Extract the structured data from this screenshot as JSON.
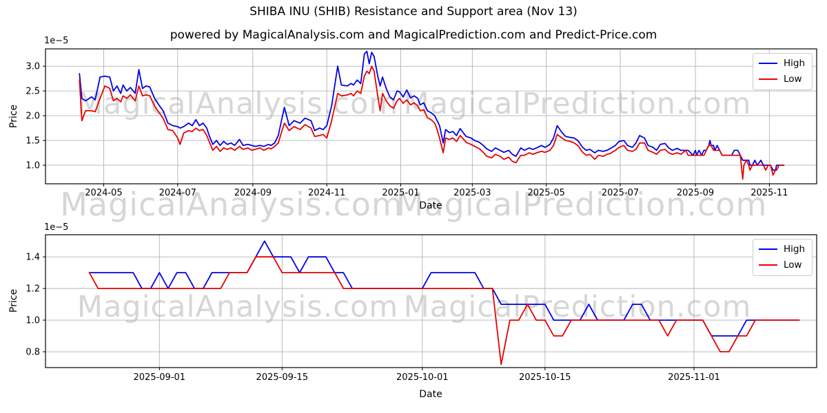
{
  "header": {
    "title": "SHIBA INU (SHIB) Resistance and Support area (Nov 13)",
    "subtitle": "powered by MagicalAnalysis.com and MagicalPrediction.com and Predict-Price.com"
  },
  "watermarks": {
    "color": "#d6d6d6",
    "top_chart": [
      "MagicalAnalysis.com",
      "MagicalPrediction.com"
    ],
    "middle": [
      "MagicalAnalysis.com",
      "MagicalPrediction.com"
    ],
    "bottom_chart": [
      "MagicalAnalysis.com",
      "MagicalPrediction.com"
    ]
  },
  "chart_data": [
    {
      "type": "line",
      "name": "full-history",
      "title": "SHIBA INU (SHIB) Resistance and Support area (Nov 13)",
      "subtitle": "powered by MagicalAnalysis.com and MagicalPrediction.com and Predict-Price.com",
      "xlabel": "Date",
      "ylabel": "Price",
      "y_offset": "1e−5",
      "unit": "1e-5",
      "grid": true,
      "legend_position": "upper right",
      "xlim": [
        "2024-03-14",
        "2025-12-10"
      ],
      "ylim": [
        0.625,
        3.35
      ],
      "y_ticks": [
        1.0,
        1.5,
        2.0,
        2.5,
        3.0
      ],
      "x_ticks": [
        {
          "label": "2024-05",
          "date": "2024-05-01"
        },
        {
          "label": "2024-07",
          "date": "2024-07-01"
        },
        {
          "label": "2024-09",
          "date": "2024-09-01"
        },
        {
          "label": "2024-11",
          "date": "2024-11-01"
        },
        {
          "label": "2025-01",
          "date": "2025-01-01"
        },
        {
          "label": "2025-03",
          "date": "2025-03-01"
        },
        {
          "label": "2025-05",
          "date": "2025-05-01"
        },
        {
          "label": "2025-07",
          "date": "2025-07-01"
        },
        {
          "label": "2025-09",
          "date": "2025-09-01"
        },
        {
          "label": "2025-11",
          "date": "2025-11-01"
        }
      ],
      "x": [
        "2024-04-11",
        "2024-04-13",
        "2024-04-16",
        "2024-04-21",
        "2024-04-24",
        "2024-04-28",
        "2024-05-02",
        "2024-05-06",
        "2024-05-09",
        "2024-05-12",
        "2024-05-15",
        "2024-05-17",
        "2024-05-20",
        "2024-05-23",
        "2024-05-27",
        "2024-05-30",
        "2024-06-02",
        "2024-06-05",
        "2024-06-08",
        "2024-06-12",
        "2024-06-16",
        "2024-06-19",
        "2024-06-23",
        "2024-06-27",
        "2024-07-01",
        "2024-07-03",
        "2024-07-06",
        "2024-07-10",
        "2024-07-13",
        "2024-07-16",
        "2024-07-19",
        "2024-07-22",
        "2024-07-25",
        "2024-07-27",
        "2024-07-30",
        "2024-08-02",
        "2024-08-05",
        "2024-08-08",
        "2024-08-11",
        "2024-08-14",
        "2024-08-17",
        "2024-08-21",
        "2024-08-24",
        "2024-08-28",
        "2024-08-31",
        "2024-09-03",
        "2024-09-07",
        "2024-09-10",
        "2024-09-14",
        "2024-09-16",
        "2024-09-19",
        "2024-09-22",
        "2024-09-27",
        "2024-10-01",
        "2024-10-05",
        "2024-10-10",
        "2024-10-14",
        "2024-10-19",
        "2024-10-22",
        "2024-10-26",
        "2024-10-29",
        "2024-11-01",
        "2024-11-05",
        "2024-11-10",
        "2024-11-13",
        "2024-11-18",
        "2024-11-21",
        "2024-11-23",
        "2024-11-26",
        "2024-11-29",
        "2024-12-02",
        "2024-12-04",
        "2024-12-06",
        "2024-12-08",
        "2024-12-10",
        "2024-12-13",
        "2024-12-15",
        "2024-12-17",
        "2024-12-20",
        "2024-12-23",
        "2024-12-26",
        "2024-12-29",
        "2024-12-31",
        "2025-01-03",
        "2025-01-06",
        "2025-01-09",
        "2025-01-12",
        "2025-01-15",
        "2025-01-17",
        "2025-01-20",
        "2025-01-23",
        "2025-01-26",
        "2025-01-29",
        "2025-01-31",
        "2025-02-02",
        "2025-02-05",
        "2025-02-07",
        "2025-02-10",
        "2025-02-13",
        "2025-02-16",
        "2025-02-19",
        "2025-02-22",
        "2025-02-24",
        "2025-02-28",
        "2025-03-03",
        "2025-03-07",
        "2025-03-10",
        "2025-03-13",
        "2025-03-17",
        "2025-03-20",
        "2025-03-24",
        "2025-03-27",
        "2025-03-31",
        "2025-04-03",
        "2025-04-06",
        "2025-04-10",
        "2025-04-13",
        "2025-04-17",
        "2025-04-20",
        "2025-04-23",
        "2025-04-27",
        "2025-04-30",
        "2025-05-04",
        "2025-05-07",
        "2025-05-10",
        "2025-05-14",
        "2025-05-17",
        "2025-05-21",
        "2025-05-24",
        "2025-05-27",
        "2025-05-31",
        "2025-06-03",
        "2025-06-06",
        "2025-06-10",
        "2025-06-13",
        "2025-06-17",
        "2025-06-20",
        "2025-06-23",
        "2025-06-27",
        "2025-06-30",
        "2025-07-04",
        "2025-07-07",
        "2025-07-11",
        "2025-07-14",
        "2025-07-17",
        "2025-07-21",
        "2025-07-24",
        "2025-07-28",
        "2025-07-31",
        "2025-08-03",
        "2025-08-07",
        "2025-08-10",
        "2025-08-13",
        "2025-08-17",
        "2025-08-20",
        "2025-08-24",
        "2025-08-26",
        "2025-08-30",
        "2025-09-01",
        "2025-09-02",
        "2025-09-04",
        "2025-09-06",
        "2025-09-08",
        "2025-09-10",
        "2025-09-12",
        "2025-09-13",
        "2025-09-14",
        "2025-09-16",
        "2025-09-17",
        "2025-09-19",
        "2025-09-21",
        "2025-09-23",
        "2025-10-01",
        "2025-10-03",
        "2025-10-06",
        "2025-10-08",
        "2025-10-10",
        "2025-10-11",
        "2025-10-13",
        "2025-10-15",
        "2025-10-16",
        "2025-10-18",
        "2025-10-20",
        "2025-10-22",
        "2025-10-25",
        "2025-10-27",
        "2025-10-29",
        "2025-10-31",
        "2025-11-02",
        "2025-11-04",
        "2025-11-06",
        "2025-11-07",
        "2025-11-09",
        "2025-11-13"
      ],
      "series": [
        {
          "name": "High",
          "color": "#0000e6",
          "values": [
            2.85,
            2.35,
            2.3,
            2.38,
            2.32,
            2.78,
            2.8,
            2.78,
            2.5,
            2.6,
            2.45,
            2.62,
            2.5,
            2.57,
            2.45,
            2.93,
            2.55,
            2.6,
            2.58,
            2.35,
            2.2,
            2.1,
            1.85,
            1.8,
            1.78,
            1.75,
            1.78,
            1.85,
            1.8,
            1.92,
            1.8,
            1.85,
            1.75,
            1.6,
            1.42,
            1.5,
            1.4,
            1.48,
            1.42,
            1.45,
            1.4,
            1.52,
            1.4,
            1.42,
            1.4,
            1.38,
            1.4,
            1.38,
            1.42,
            1.4,
            1.45,
            1.6,
            2.17,
            1.8,
            1.9,
            1.85,
            1.95,
            1.9,
            1.7,
            1.75,
            1.72,
            1.8,
            2.2,
            3.0,
            2.62,
            2.6,
            2.65,
            2.62,
            2.72,
            2.65,
            3.25,
            3.3,
            3.05,
            3.28,
            3.2,
            2.8,
            2.6,
            2.78,
            2.55,
            2.38,
            2.32,
            2.5,
            2.48,
            2.38,
            2.52,
            2.36,
            2.4,
            2.35,
            2.22,
            2.26,
            2.1,
            2.06,
            2.0,
            1.9,
            1.8,
            1.45,
            1.72,
            1.66,
            1.68,
            1.6,
            1.74,
            1.64,
            1.58,
            1.55,
            1.5,
            1.46,
            1.4,
            1.33,
            1.28,
            1.35,
            1.3,
            1.26,
            1.3,
            1.22,
            1.18,
            1.35,
            1.3,
            1.35,
            1.32,
            1.35,
            1.4,
            1.36,
            1.42,
            1.55,
            1.8,
            1.66,
            1.58,
            1.56,
            1.55,
            1.5,
            1.36,
            1.3,
            1.32,
            1.25,
            1.3,
            1.28,
            1.3,
            1.34,
            1.4,
            1.48,
            1.5,
            1.4,
            1.36,
            1.45,
            1.6,
            1.55,
            1.4,
            1.36,
            1.3,
            1.42,
            1.44,
            1.35,
            1.3,
            1.34,
            1.3,
            1.3,
            1.3,
            1.2,
            1.3,
            1.2,
            1.3,
            1.2,
            1.3,
            1.3,
            1.4,
            1.5,
            1.4,
            1.4,
            1.3,
            1.4,
            1.3,
            1.2,
            1.2,
            1.3,
            1.3,
            1.2,
            1.1,
            1.1,
            1.1,
            1.1,
            1.0,
            1.0,
            1.1,
            1.0,
            1.1,
            1.0,
            1.0,
            1.0,
            1.0,
            0.9,
            0.9,
            1.0,
            1.0,
            1.0
          ]
        },
        {
          "name": "Low",
          "color": "#e60000",
          "values": [
            2.72,
            1.9,
            2.1,
            2.1,
            2.08,
            2.35,
            2.6,
            2.55,
            2.3,
            2.35,
            2.28,
            2.4,
            2.35,
            2.42,
            2.3,
            2.6,
            2.4,
            2.42,
            2.4,
            2.2,
            2.05,
            1.95,
            1.72,
            1.7,
            1.55,
            1.42,
            1.65,
            1.7,
            1.68,
            1.75,
            1.7,
            1.72,
            1.6,
            1.48,
            1.3,
            1.38,
            1.28,
            1.35,
            1.32,
            1.35,
            1.3,
            1.38,
            1.32,
            1.35,
            1.3,
            1.32,
            1.35,
            1.3,
            1.35,
            1.33,
            1.38,
            1.45,
            1.85,
            1.7,
            1.78,
            1.72,
            1.82,
            1.75,
            1.58,
            1.6,
            1.62,
            1.55,
            1.9,
            2.45,
            2.4,
            2.42,
            2.45,
            2.4,
            2.5,
            2.45,
            2.8,
            2.9,
            2.85,
            3.0,
            2.9,
            2.4,
            2.1,
            2.45,
            2.3,
            2.2,
            2.15,
            2.3,
            2.35,
            2.25,
            2.32,
            2.22,
            2.26,
            2.2,
            2.1,
            2.12,
            1.96,
            1.92,
            1.85,
            1.72,
            1.55,
            1.25,
            1.55,
            1.52,
            1.55,
            1.48,
            1.6,
            1.52,
            1.46,
            1.42,
            1.38,
            1.33,
            1.26,
            1.18,
            1.15,
            1.22,
            1.18,
            1.12,
            1.16,
            1.08,
            1.05,
            1.2,
            1.2,
            1.25,
            1.22,
            1.25,
            1.28,
            1.26,
            1.3,
            1.4,
            1.62,
            1.55,
            1.5,
            1.48,
            1.45,
            1.4,
            1.26,
            1.2,
            1.22,
            1.12,
            1.2,
            1.18,
            1.22,
            1.24,
            1.3,
            1.36,
            1.4,
            1.3,
            1.28,
            1.32,
            1.45,
            1.45,
            1.3,
            1.26,
            1.22,
            1.3,
            1.32,
            1.25,
            1.22,
            1.25,
            1.22,
            1.3,
            1.2,
            1.2,
            1.2,
            1.2,
            1.2,
            1.2,
            1.2,
            1.3,
            1.4,
            1.4,
            1.4,
            1.3,
            1.3,
            1.3,
            1.3,
            1.2,
            1.2,
            1.2,
            1.2,
            1.2,
            0.72,
            1.0,
            1.1,
            1.0,
            0.9,
            1.0,
            1.0,
            1.0,
            1.0,
            1.0,
            0.9,
            1.0,
            1.0,
            0.8,
            0.9,
            0.9,
            1.0,
            1.0
          ]
        }
      ]
    },
    {
      "type": "line",
      "name": "recent-zoom",
      "title": "",
      "xlabel": "Date",
      "ylabel": "Price",
      "y_offset": "1e−5",
      "unit": "1e-5",
      "grid": true,
      "legend_position": "upper right",
      "xlim": [
        "2025-08-19",
        "2025-11-15"
      ],
      "ylim": [
        0.7,
        1.54
      ],
      "y_ticks": [
        0.8,
        1.0,
        1.2,
        1.4
      ],
      "x_ticks": [
        {
          "label": "2025-09-01",
          "date": "2025-09-01"
        },
        {
          "label": "2025-09-15",
          "date": "2025-09-15"
        },
        {
          "label": "2025-10-01",
          "date": "2025-10-01"
        },
        {
          "label": "2025-10-15",
          "date": "2025-10-15"
        },
        {
          "label": "2025-11-01",
          "date": "2025-11-01"
        }
      ],
      "x": [
        "2025-08-24",
        "2025-08-25",
        "2025-08-26",
        "2025-08-27",
        "2025-08-28",
        "2025-08-29",
        "2025-08-30",
        "2025-08-31",
        "2025-09-01",
        "2025-09-02",
        "2025-09-03",
        "2025-09-04",
        "2025-09-05",
        "2025-09-06",
        "2025-09-07",
        "2025-09-08",
        "2025-09-09",
        "2025-09-10",
        "2025-09-11",
        "2025-09-12",
        "2025-09-13",
        "2025-09-14",
        "2025-09-15",
        "2025-09-16",
        "2025-09-17",
        "2025-09-18",
        "2025-09-19",
        "2025-09-20",
        "2025-09-21",
        "2025-09-22",
        "2025-09-23",
        "2025-09-24",
        "2025-09-25",
        "2025-09-26",
        "2025-09-27",
        "2025-09-28",
        "2025-09-29",
        "2025-09-30",
        "2025-10-01",
        "2025-10-02",
        "2025-10-03",
        "2025-10-04",
        "2025-10-05",
        "2025-10-06",
        "2025-10-07",
        "2025-10-08",
        "2025-10-09",
        "2025-10-10",
        "2025-10-11",
        "2025-10-12",
        "2025-10-13",
        "2025-10-14",
        "2025-10-15",
        "2025-10-16",
        "2025-10-17",
        "2025-10-18",
        "2025-10-19",
        "2025-10-20",
        "2025-10-21",
        "2025-10-22",
        "2025-10-23",
        "2025-10-24",
        "2025-10-25",
        "2025-10-26",
        "2025-10-27",
        "2025-10-28",
        "2025-10-29",
        "2025-10-30",
        "2025-10-31",
        "2025-11-01",
        "2025-11-02",
        "2025-11-03",
        "2025-11-04",
        "2025-11-05",
        "2025-11-06",
        "2025-11-07",
        "2025-11-08",
        "2025-11-09",
        "2025-11-10",
        "2025-11-11",
        "2025-11-12",
        "2025-11-13"
      ],
      "series": [
        {
          "name": "High",
          "color": "#0000e6",
          "values": [
            1.3,
            1.3,
            1.3,
            1.3,
            1.3,
            1.3,
            1.2,
            1.2,
            1.3,
            1.2,
            1.3,
            1.3,
            1.2,
            1.2,
            1.3,
            1.3,
            1.3,
            1.3,
            1.3,
            1.4,
            1.5,
            1.4,
            1.4,
            1.4,
            1.3,
            1.4,
            1.4,
            1.4,
            1.3,
            1.3,
            1.2,
            1.2,
            1.2,
            1.2,
            1.2,
            1.2,
            1.2,
            1.2,
            1.2,
            1.3,
            1.3,
            1.3,
            1.3,
            1.3,
            1.3,
            1.2,
            1.2,
            1.1,
            1.1,
            1.1,
            1.1,
            1.1,
            1.1,
            1.0,
            1.0,
            1.0,
            1.0,
            1.1,
            1.0,
            1.0,
            1.0,
            1.0,
            1.1,
            1.1,
            1.0,
            1.0,
            1.0,
            1.0,
            1.0,
            1.0,
            1.0,
            0.9,
            0.9,
            0.9,
            0.9,
            1.0,
            1.0,
            1.0,
            1.0,
            1.0,
            1.0,
            1.0
          ]
        },
        {
          "name": "Low",
          "color": "#e60000",
          "values": [
            1.3,
            1.2,
            1.2,
            1.2,
            1.2,
            1.2,
            1.2,
            1.2,
            1.2,
            1.2,
            1.2,
            1.2,
            1.2,
            1.2,
            1.2,
            1.2,
            1.3,
            1.3,
            1.3,
            1.4,
            1.4,
            1.4,
            1.3,
            1.3,
            1.3,
            1.3,
            1.3,
            1.3,
            1.3,
            1.2,
            1.2,
            1.2,
            1.2,
            1.2,
            1.2,
            1.2,
            1.2,
            1.2,
            1.2,
            1.2,
            1.2,
            1.2,
            1.2,
            1.2,
            1.2,
            1.2,
            1.2,
            0.72,
            1.0,
            1.0,
            1.1,
            1.0,
            1.0,
            0.9,
            0.9,
            1.0,
            1.0,
            1.0,
            1.0,
            1.0,
            1.0,
            1.0,
            1.0,
            1.0,
            1.0,
            1.0,
            0.9,
            1.0,
            1.0,
            1.0,
            1.0,
            0.9,
            0.8,
            0.8,
            0.9,
            0.9,
            1.0,
            1.0,
            1.0,
            1.0,
            1.0,
            1.0
          ]
        }
      ]
    }
  ]
}
